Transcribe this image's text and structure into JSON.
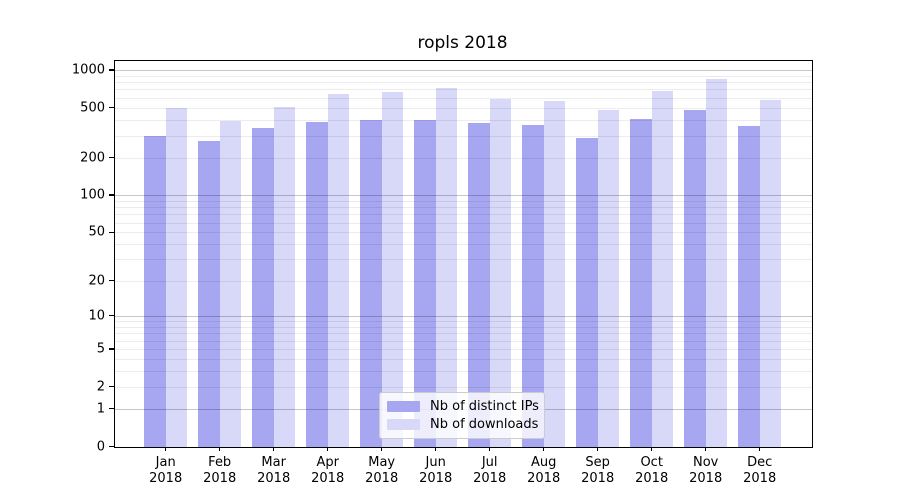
{
  "chart_data": {
    "type": "bar",
    "title": "ropls 2018",
    "categories": [
      "Jan",
      "Feb",
      "Mar",
      "Apr",
      "May",
      "Jun",
      "Jul",
      "Aug",
      "Sep",
      "Oct",
      "Nov",
      "Dec"
    ],
    "year_label": "2018",
    "series": [
      {
        "name": "Nb of distinct IPs",
        "color": "#a6a6f1",
        "values": [
          300,
          270,
          345,
          385,
          400,
          400,
          375,
          365,
          285,
          410,
          480,
          360
        ]
      },
      {
        "name": "Nb of downloads",
        "color": "#d8d8f8",
        "values": [
          495,
          390,
          510,
          640,
          665,
          715,
          585,
          565,
          480,
          685,
          855,
          580
        ]
      }
    ],
    "yscale": "log10(value+1)",
    "ylim": [
      0,
      1180
    ],
    "y_tick_labels": [
      1000,
      500,
      200,
      100,
      50,
      20,
      10,
      5,
      2,
      1,
      0
    ],
    "y_major_gridlines": [
      1,
      10,
      100,
      1000
    ],
    "y_minor_gridlines": [
      2,
      3,
      4,
      5,
      6,
      7,
      8,
      9,
      20,
      30,
      40,
      50,
      60,
      70,
      80,
      90,
      200,
      300,
      400,
      500,
      600,
      700,
      800,
      900
    ],
    "grid": "horizontal",
    "legend_position": "lower center",
    "colors": {
      "background": "#ffffff",
      "axis": "#000000",
      "major_grid": "#c7c7c7",
      "minor_grid": "#ececec",
      "legend_border": "#cccccc"
    }
  }
}
